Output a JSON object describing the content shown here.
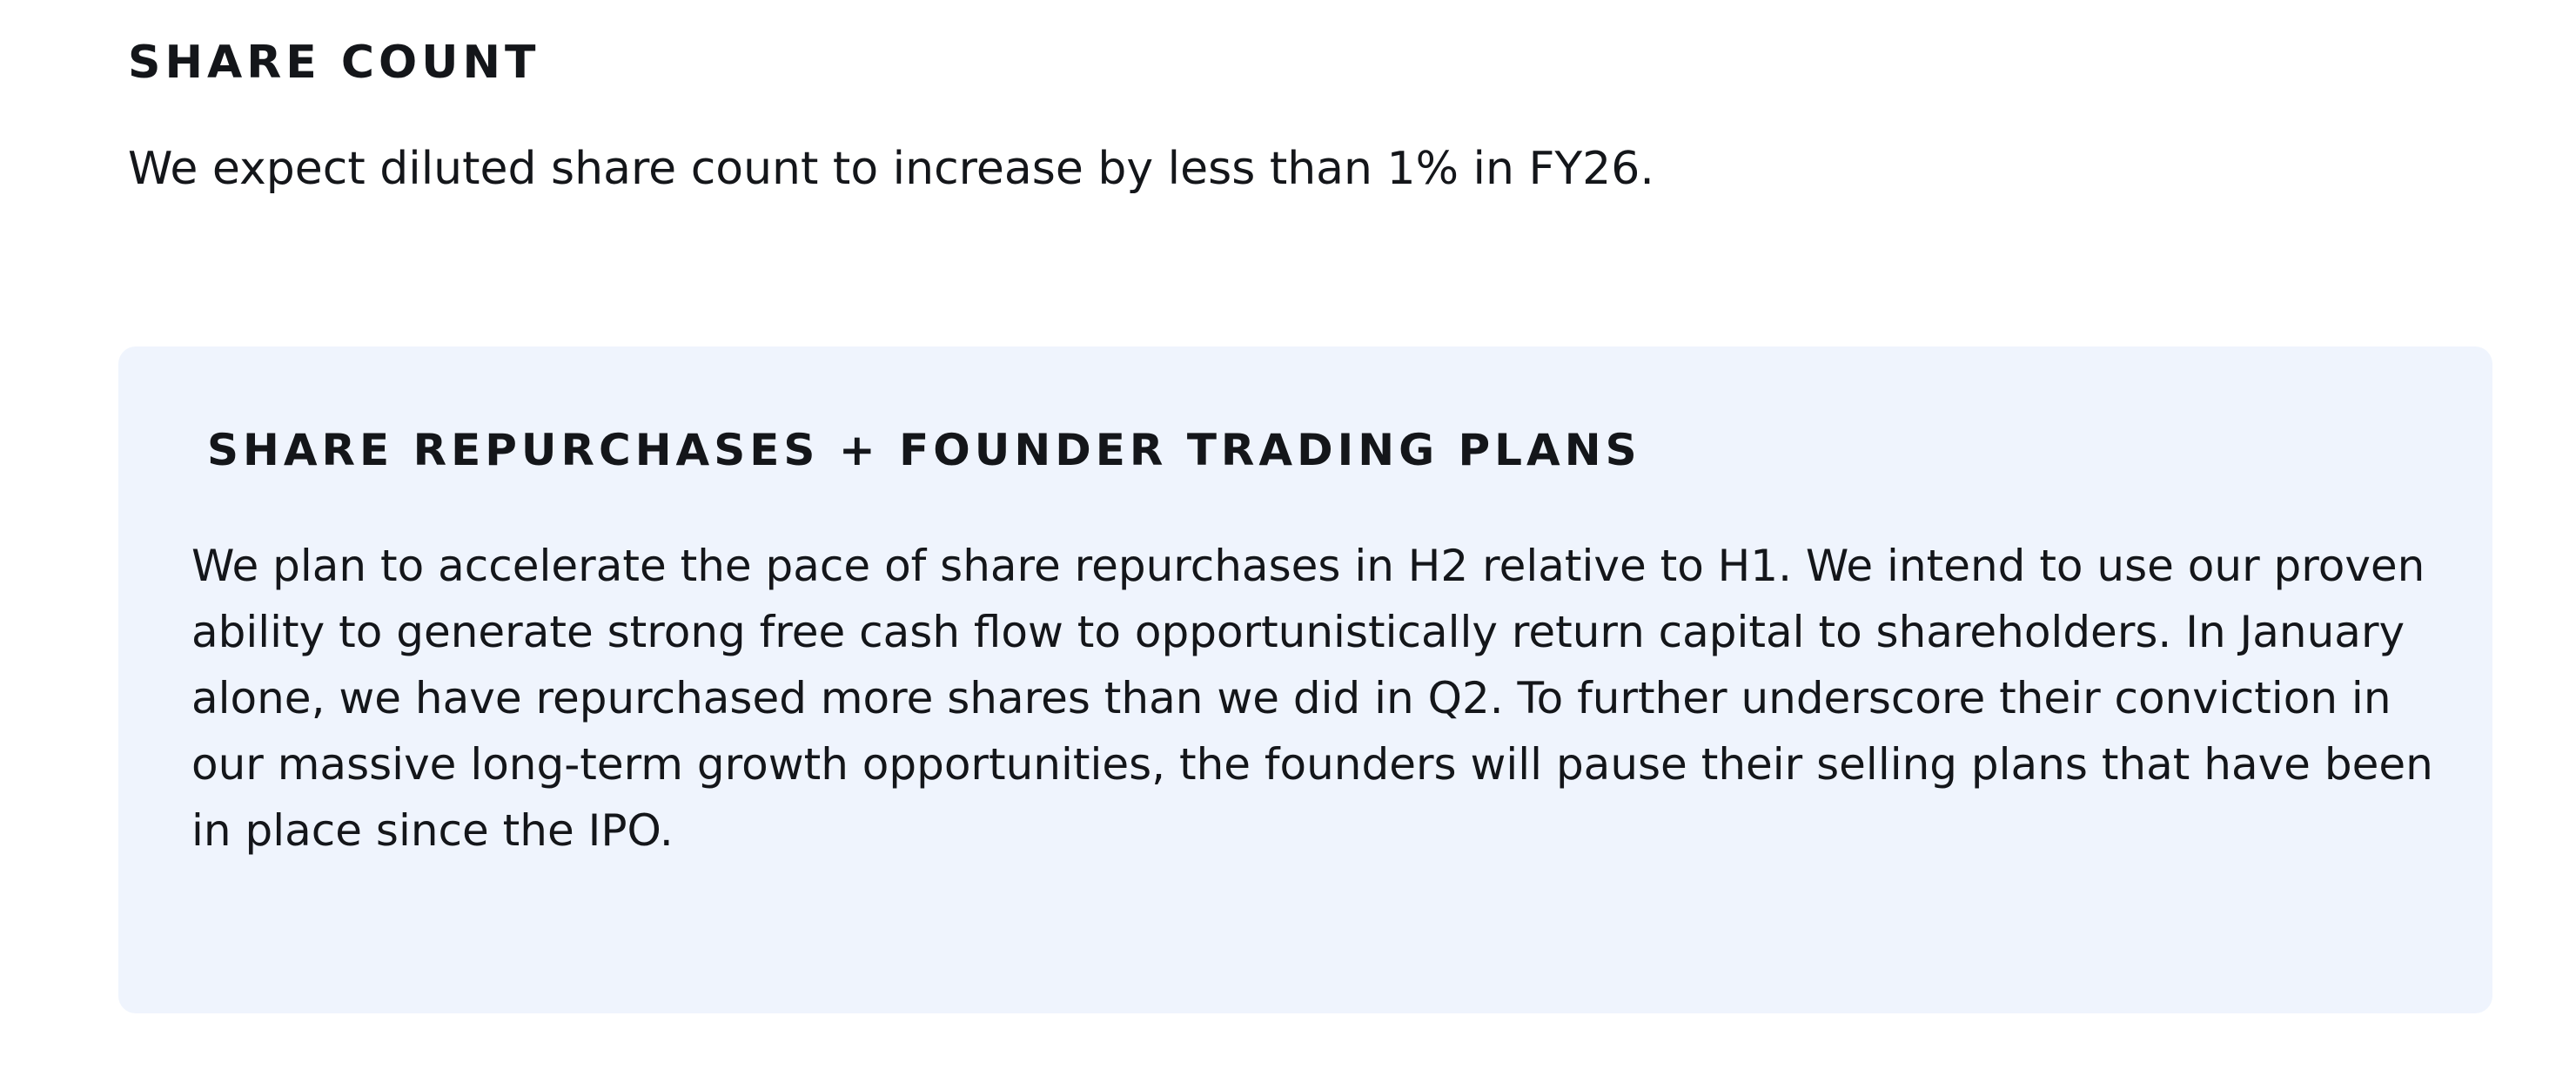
{
  "share_count": {
    "heading": "SHARE COUNT",
    "body": "We expect diluted share count to increase by less than 1% in FY26."
  },
  "callout": {
    "heading": "SHARE REPURCHASES + FOUNDER TRADING PLANS",
    "body": "We plan to accelerate the pace of share repurchases in H2 relative to H1. We intend to use our proven ability to generate strong free cash flow to opportunistically return capital to shareholders. In January alone, we have repurchased more shares than we did in Q2. To further underscore their conviction in our massive long-term growth opportunities, the founders will pause their selling plans that have been in place since the IPO.",
    "background_color": "#eff4fd"
  }
}
